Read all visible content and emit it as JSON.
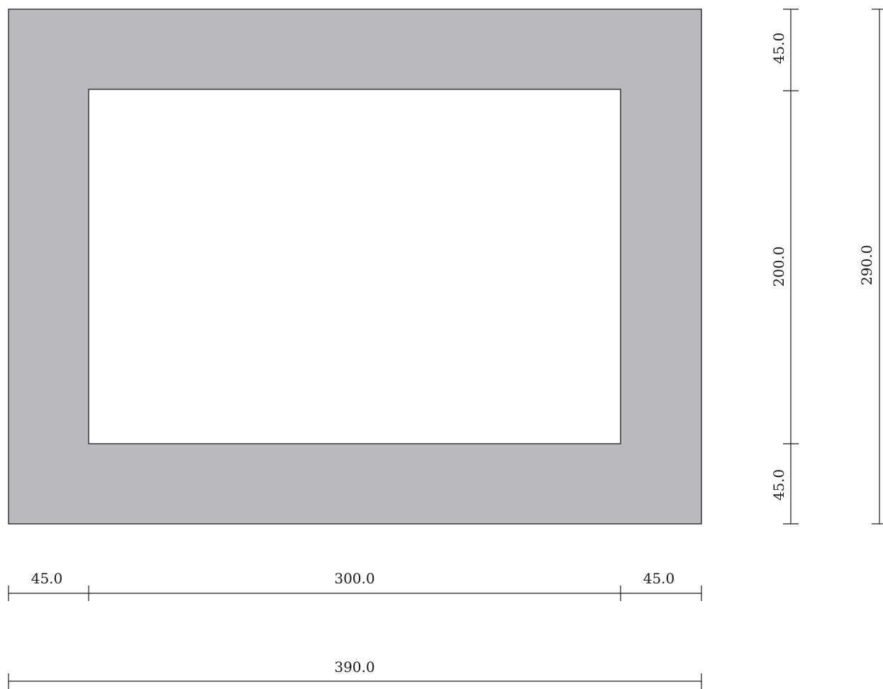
{
  "section": {
    "outer_width": 390.0,
    "outer_height": 290.0,
    "inner_width": 300.0,
    "inner_height": 200.0,
    "wall_left": 45.0,
    "wall_right": 45.0,
    "wall_top": 45.0,
    "wall_bottom": 45.0,
    "fill_color": "#b9babd",
    "hole_color": "#ffffff",
    "stroke_color": "#2a2a2a"
  },
  "dimensions": {
    "horizontal_segments": {
      "left": "45.0",
      "middle": "300.0",
      "right": "45.0"
    },
    "horizontal_total": "390.0",
    "vertical_segments": {
      "top": "45.0",
      "middle": "200.0",
      "bottom": "45.0"
    },
    "vertical_total": "290.0"
  }
}
